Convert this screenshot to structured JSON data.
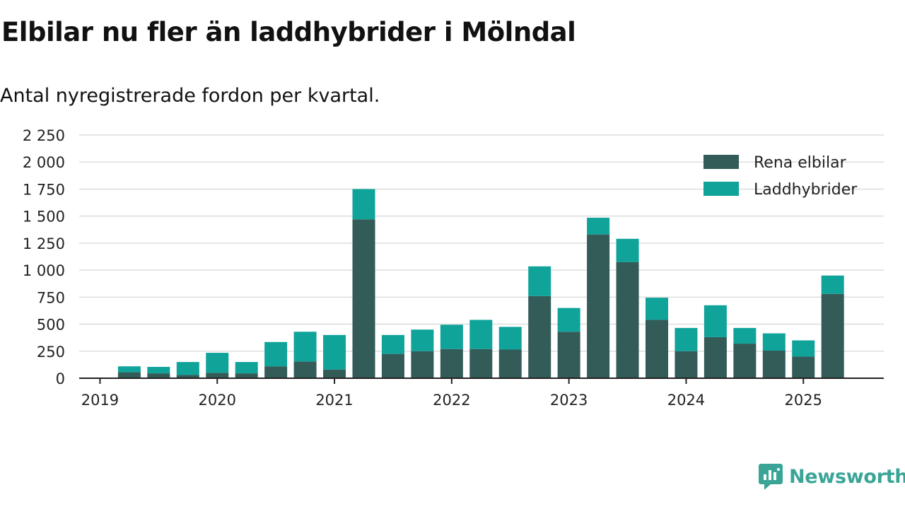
{
  "title": "Elbilar nu fler än laddhybrider i Mölndal",
  "subtitle": "Antal nyregistrerade fordon per kvartal.",
  "brand": {
    "name": "Newsworthy",
    "color": "#3aa597",
    "icon": "newsworthy-logo-icon"
  },
  "chart_data": {
    "type": "bar",
    "stacked": true,
    "categories": [
      "2019 Q1",
      "2019 Q2",
      "2019 Q3",
      "2019 Q4",
      "2020 Q1",
      "2020 Q2",
      "2020 Q3",
      "2020 Q4",
      "2021 Q1",
      "2021 Q2",
      "2021 Q3",
      "2021 Q4",
      "2022 Q1",
      "2022 Q2",
      "2022 Q3",
      "2022 Q4",
      "2023 Q1",
      "2023 Q2",
      "2023 Q3",
      "2023 Q4",
      "2024 Q1",
      "2024 Q2",
      "2024 Q3",
      "2024 Q4",
      "2025 Q1",
      "2025 Q2"
    ],
    "series": [
      {
        "name": "Rena elbilar",
        "color": "#335b58",
        "values": [
          0,
          55,
          45,
          30,
          50,
          45,
          110,
          155,
          80,
          1470,
          225,
          250,
          270,
          270,
          265,
          760,
          430,
          1330,
          1075,
          540,
          250,
          380,
          320,
          255,
          200,
          780
        ]
      },
      {
        "name": "Laddhybrider",
        "color": "#0fa39a",
        "values": [
          0,
          55,
          60,
          120,
          185,
          105,
          225,
          275,
          320,
          280,
          175,
          200,
          225,
          270,
          210,
          275,
          220,
          155,
          215,
          205,
          215,
          295,
          145,
          160,
          150,
          170
        ]
      }
    ],
    "ylim": [
      0,
      2250
    ],
    "yticks": [
      0,
      250,
      500,
      750,
      1000,
      1250,
      1500,
      1750,
      2000,
      2250
    ],
    "ytick_labels": [
      "0",
      "250",
      "500",
      "750",
      "1 000",
      "1 250",
      "1 500",
      "1 750",
      "2 000",
      "2 250"
    ],
    "xtick_labels": [
      "2019",
      "2020",
      "2021",
      "2022",
      "2023",
      "2024",
      "2025"
    ],
    "xtick_category_index": [
      0,
      4,
      8,
      12,
      16,
      20,
      24
    ],
    "grid": true,
    "legend": "top-right",
    "xlabel": "",
    "ylabel": ""
  }
}
